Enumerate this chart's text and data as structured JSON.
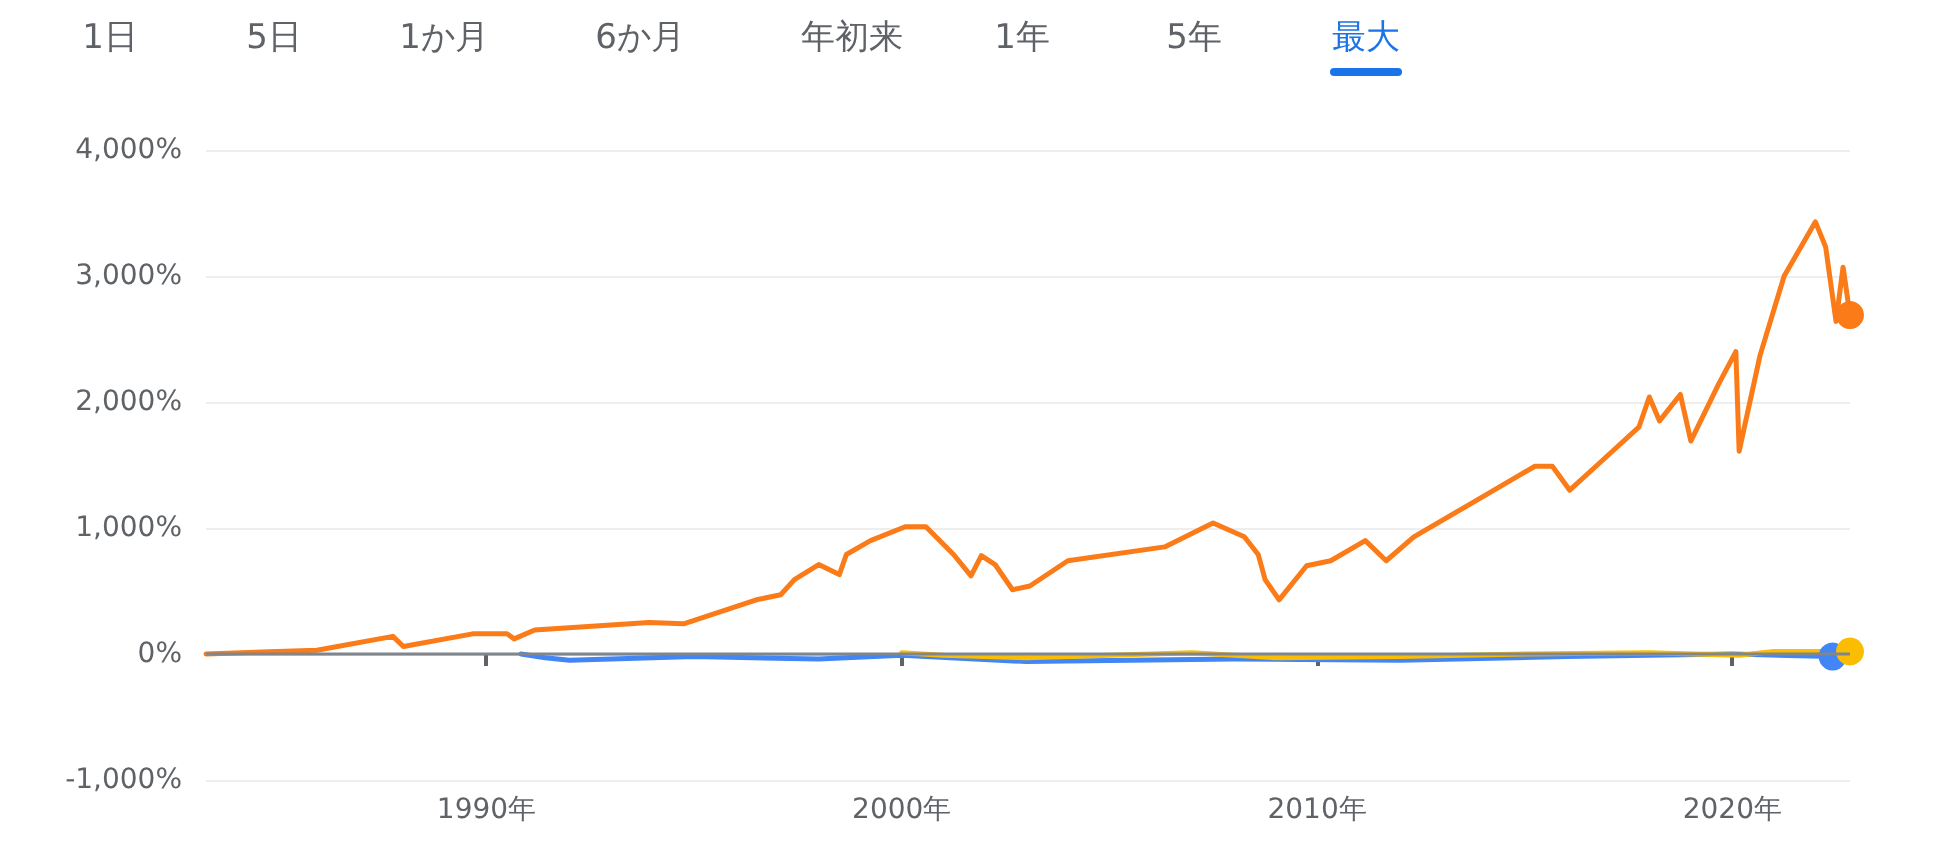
{
  "chart_data": {
    "type": "line",
    "annotations": [
      "1日",
      "5日",
      "1か月",
      "6か月",
      "年初来",
      "1年",
      "5年",
      "最大"
    ],
    "xlim": [
      "1983-04",
      "2022-11"
    ],
    "xticks": [
      {
        "value": "1990",
        "label": "1990年"
      },
      {
        "value": "2000",
        "label": "2000年"
      },
      {
        "value": "2010",
        "label": "2010年"
      },
      {
        "value": "2020",
        "label": "2020年"
      }
    ],
    "ylim": [
      -1000,
      4000
    ],
    "yticks": [
      {
        "value": -1000,
        "label": "-1,000%"
      },
      {
        "value": 0,
        "label": "0%"
      },
      {
        "value": 1000,
        "label": "1,000%"
      },
      {
        "value": 2000,
        "label": "2,000%"
      },
      {
        "value": 3000,
        "label": "3,000%"
      },
      {
        "value": 4000,
        "label": "4,000%"
      }
    ],
    "grid": "y",
    "line_style": "solid",
    "ref_lines": [
      {
        "axis": "y",
        "value": 0,
        "color": "#80868b"
      }
    ],
    "series": [
      {
        "color": "#fa7b17",
        "x": [
          "1983-04",
          "1985-12",
          "1987-10",
          "1988-01",
          "1989-09",
          "1990-07",
          "1990-09",
          "1991-03",
          "1993-12",
          "1994-10",
          "1995-07",
          "1996-07",
          "1997-02",
          "1997-06",
          "1998-01",
          "1998-07",
          "1998-09",
          "1999-04",
          "2000-02",
          "2000-08",
          "2001-04",
          "2001-09",
          "2001-12",
          "2002-04",
          "2002-09",
          "2003-02",
          "2004-01",
          "2006-05",
          "2007-07",
          "2008-04",
          "2008-08",
          "2008-10",
          "2009-02",
          "2009-10",
          "2010-05",
          "2011-03",
          "2011-09",
          "2012-05",
          "2013-08",
          "2015-04",
          "2015-09",
          "2016-02",
          "2016-10",
          "2017-10",
          "2018-01",
          "2018-04",
          "2018-10",
          "2019-01",
          "2019-09",
          "2020-02",
          "2020-03",
          "2020-09",
          "2021-04",
          "2022-01",
          "2022-04",
          "2022-07",
          "2022-09",
          "2022-11"
        ],
        "values": [
          0,
          30,
          140,
          60,
          160,
          160,
          120,
          190,
          250,
          240,
          320,
          430,
          470,
          590,
          710,
          630,
          790,
          900,
          1010,
          1010,
          790,
          620,
          780,
          710,
          510,
          540,
          740,
          850,
          1040,
          930,
          790,
          590,
          430,
          700,
          740,
          900,
          740,
          930,
          1170,
          1490,
          1490,
          1300,
          1500,
          1800,
          2040,
          1850,
          2060,
          1690,
          2140,
          2400,
          1610,
          2370,
          3000,
          3430,
          3230,
          2640,
          3070,
          2690
        ]
      },
      {
        "color": "#4285f4",
        "x": [
          "1990-11",
          "1991-06",
          "1992-01",
          "1995-01",
          "1998-01",
          "2000-01",
          "2003-01",
          "2008-01",
          "2012-01",
          "2016-01",
          "2020-01",
          "2022-06"
        ],
        "values": [
          0,
          -30,
          -50,
          -20,
          -40,
          -10,
          -60,
          -40,
          -50,
          -20,
          0,
          -20
        ]
      },
      {
        "color": "#fbbc04",
        "x": [
          "2000-01",
          "2001-01",
          "2003-01",
          "2007-01",
          "2009-01",
          "2012-01",
          "2015-01",
          "2018-01",
          "2020-03",
          "2021-01",
          "2022-11"
        ],
        "values": [
          10,
          -10,
          -30,
          10,
          -30,
          -20,
          0,
          10,
          -10,
          20,
          20
        ]
      }
    ]
  }
}
